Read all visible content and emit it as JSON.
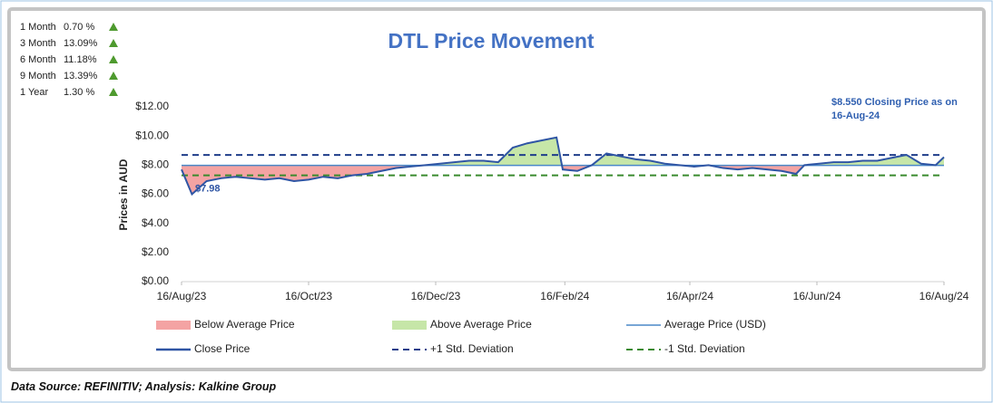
{
  "chart_data": {
    "type": "line",
    "title": "DTL Price Movement",
    "ylabel": "Prices in AUD",
    "annotation": "$8.550 Closing Price as on 16-Aug-24",
    "footer": "Data Source: REFINITIV; Analysis: Kalkine Group",
    "performance": [
      {
        "label": "1 Month",
        "value": 0.7,
        "value_label": "0.70 %"
      },
      {
        "label": "3 Month",
        "value": 13.09,
        "value_label": "13.09%"
      },
      {
        "label": "6 Month",
        "value": 11.18,
        "value_label": "11.18%"
      },
      {
        "label": "9 Month",
        "value": 13.39,
        "value_label": "13.39%"
      },
      {
        "label": "1 Year",
        "value": 1.3,
        "value_label": "1.30 %"
      }
    ],
    "x": [
      "2023-08-16",
      "2023-08-21",
      "2023-08-28",
      "2023-09-04",
      "2023-09-11",
      "2023-09-18",
      "2023-09-25",
      "2023-10-02",
      "2023-10-09",
      "2023-10-16",
      "2023-10-23",
      "2023-10-30",
      "2023-11-06",
      "2023-11-13",
      "2023-11-20",
      "2023-11-27",
      "2023-12-04",
      "2023-12-11",
      "2023-12-18",
      "2023-12-25",
      "2024-01-01",
      "2024-01-08",
      "2024-01-15",
      "2024-01-22",
      "2024-01-29",
      "2024-02-05",
      "2024-02-12",
      "2024-02-15",
      "2024-02-22",
      "2024-02-29",
      "2024-03-07",
      "2024-03-14",
      "2024-03-21",
      "2024-03-28",
      "2024-04-04",
      "2024-04-11",
      "2024-04-18",
      "2024-04-25",
      "2024-05-02",
      "2024-05-09",
      "2024-05-16",
      "2024-05-23",
      "2024-05-30",
      "2024-06-06",
      "2024-06-10",
      "2024-06-17",
      "2024-06-24",
      "2024-07-01",
      "2024-07-08",
      "2024-07-15",
      "2024-07-22",
      "2024-07-29",
      "2024-08-05",
      "2024-08-12",
      "2024-08-16"
    ],
    "series": [
      {
        "name": "Close Price",
        "color": "#2f55a4",
        "values": [
          7.7,
          6.0,
          6.9,
          7.1,
          7.2,
          7.1,
          7.0,
          7.1,
          6.9,
          7.0,
          7.2,
          7.1,
          7.3,
          7.4,
          7.6,
          7.8,
          7.9,
          8.0,
          8.1,
          8.2,
          8.3,
          8.3,
          8.2,
          9.2,
          9.5,
          9.7,
          9.9,
          7.7,
          7.6,
          8.0,
          8.8,
          8.6,
          8.4,
          8.3,
          8.1,
          8.0,
          7.9,
          8.0,
          7.8,
          7.7,
          7.8,
          7.7,
          7.6,
          7.4,
          8.0,
          8.1,
          8.2,
          8.2,
          8.3,
          8.3,
          8.5,
          8.7,
          8.1,
          8.0,
          8.55
        ]
      }
    ],
    "reference_lines": [
      {
        "name": "Average Price (USD)",
        "value": 7.98,
        "value_label": "$7.98",
        "color": "#4a88c7",
        "dash": false
      },
      {
        "name": "+1 Std. Deviation",
        "value": 8.7,
        "color": "#1f3d8a",
        "dash": true
      },
      {
        "name": "-1 Std. Deviation",
        "value": 7.3,
        "color": "#3a8a2e",
        "dash": true
      }
    ],
    "fills": [
      {
        "name": "Below Average Price",
        "color": "#f4a3a3"
      },
      {
        "name": "Above Average Price",
        "color": "#c6e6a8"
      }
    ],
    "ylim": [
      0,
      12
    ],
    "yticks": [
      {
        "value": 0,
        "label": "$0.00"
      },
      {
        "value": 2,
        "label": "$2.00"
      },
      {
        "value": 4,
        "label": "$4.00"
      },
      {
        "value": 6,
        "label": "$6.00"
      },
      {
        "value": 8,
        "label": "$8.00"
      },
      {
        "value": 10,
        "label": "$10.00"
      },
      {
        "value": 12,
        "label": "$12.00"
      }
    ],
    "xlim": [
      "2023-08-16",
      "2024-08-16"
    ],
    "xticks": [
      {
        "value": "2023-08-16",
        "label": "16/Aug/23"
      },
      {
        "value": "2023-10-16",
        "label": "16/Oct/23"
      },
      {
        "value": "2023-12-16",
        "label": "16/Dec/23"
      },
      {
        "value": "2024-02-16",
        "label": "16/Feb/24"
      },
      {
        "value": "2024-04-16",
        "label": "16/Apr/24"
      },
      {
        "value": "2024-06-16",
        "label": "16/Jun/24"
      },
      {
        "value": "2024-08-16",
        "label": "16/Aug/24"
      }
    ],
    "grid": false
  }
}
